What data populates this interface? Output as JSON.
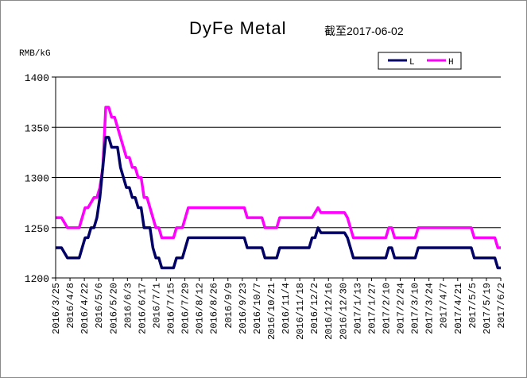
{
  "chart_data": {
    "type": "line",
    "title": "DyFe Metal",
    "subtitle": "截至2017-06-02",
    "ylabel": "RMB/kG",
    "xlabel": "",
    "ylim": [
      1200,
      1400
    ],
    "yticks": [
      1200,
      1250,
      1300,
      1350,
      1400
    ],
    "grid": "horizontal",
    "legend_position": "top-right",
    "x_tick_labels": [
      "2016/3/25",
      "2016/4/8",
      "2016/4/22",
      "2016/5/6",
      "2016/5/20",
      "2016/6/3",
      "2016/6/17",
      "2016/7/1",
      "2016/7/15",
      "2016/7/29",
      "2016/8/12",
      "2016/8/26",
      "2016/9/9",
      "2016/9/23",
      "2016/10/7",
      "2016/10/21",
      "2016/11/4",
      "2016/11/18",
      "2016/12/2",
      "2016/12/16",
      "2016/12/30",
      "2017/1/13",
      "2017/1/27",
      "2017/2/10",
      "2017/2/24",
      "2017/3/10",
      "2017/3/24",
      "2017/4/7",
      "2017/4/21",
      "2017/5/5",
      "2017/5/19",
      "2017/6/2"
    ],
    "series": [
      {
        "name": "L",
        "color": "#000066",
        "values": [
          1230,
          1230,
          1230,
          1225,
          1220,
          1220,
          1220,
          1220,
          1220,
          1230,
          1240,
          1240,
          1250,
          1250,
          1260,
          1280,
          1310,
          1340,
          1340,
          1330,
          1330,
          1330,
          1310,
          1300,
          1290,
          1290,
          1280,
          1280,
          1270,
          1270,
          1250,
          1250,
          1250,
          1230,
          1220,
          1220,
          1210,
          1210,
          1210,
          1210,
          1210,
          1220,
          1220,
          1220,
          1230,
          1240,
          1240,
          1240,
          1240,
          1240,
          1240,
          1240,
          1240,
          1240,
          1240,
          1240,
          1240,
          1240,
          1240,
          1240,
          1240,
          1240,
          1240,
          1240,
          1240,
          1230,
          1230,
          1230,
          1230,
          1230,
          1230,
          1220,
          1220,
          1220,
          1220,
          1220,
          1230,
          1230,
          1230,
          1230,
          1230,
          1230,
          1230,
          1230,
          1230,
          1230,
          1230,
          1240,
          1240,
          1250,
          1245,
          1245,
          1245,
          1245,
          1245,
          1245,
          1245,
          1245,
          1245,
          1240,
          1230,
          1220,
          1220,
          1220,
          1220,
          1220,
          1220,
          1220,
          1220,
          1220,
          1220,
          1220,
          1220,
          1230,
          1230,
          1220,
          1220,
          1220,
          1220,
          1220,
          1220,
          1220,
          1220,
          1230,
          1230,
          1230,
          1230,
          1230,
          1230,
          1230,
          1230,
          1230,
          1230,
          1230,
          1230,
          1230,
          1230,
          1230,
          1230,
          1230,
          1230,
          1230,
          1220,
          1220,
          1220,
          1220,
          1220,
          1220,
          1220,
          1220,
          1210,
          1210
        ]
      },
      {
        "name": "H",
        "color": "#ff00ff",
        "values": [
          1260,
          1260,
          1260,
          1255,
          1250,
          1250,
          1250,
          1250,
          1250,
          1260,
          1270,
          1270,
          1275,
          1280,
          1280,
          1290,
          1310,
          1370,
          1370,
          1360,
          1360,
          1350,
          1340,
          1330,
          1320,
          1320,
          1310,
          1310,
          1300,
          1300,
          1280,
          1280,
          1270,
          1260,
          1250,
          1250,
          1240,
          1240,
          1240,
          1240,
          1240,
          1250,
          1250,
          1250,
          1260,
          1270,
          1270,
          1270,
          1270,
          1270,
          1270,
          1270,
          1270,
          1270,
          1270,
          1270,
          1270,
          1270,
          1270,
          1270,
          1270,
          1270,
          1270,
          1270,
          1270,
          1260,
          1260,
          1260,
          1260,
          1260,
          1260,
          1250,
          1250,
          1250,
          1250,
          1250,
          1260,
          1260,
          1260,
          1260,
          1260,
          1260,
          1260,
          1260,
          1260,
          1260,
          1260,
          1260,
          1265,
          1270,
          1265,
          1265,
          1265,
          1265,
          1265,
          1265,
          1265,
          1265,
          1265,
          1260,
          1250,
          1240,
          1240,
          1240,
          1240,
          1240,
          1240,
          1240,
          1240,
          1240,
          1240,
          1240,
          1240,
          1250,
          1250,
          1240,
          1240,
          1240,
          1240,
          1240,
          1240,
          1240,
          1240,
          1250,
          1250,
          1250,
          1250,
          1250,
          1250,
          1250,
          1250,
          1250,
          1250,
          1250,
          1250,
          1250,
          1250,
          1250,
          1250,
          1250,
          1250,
          1250,
          1240,
          1240,
          1240,
          1240,
          1240,
          1240,
          1240,
          1240,
          1230,
          1230
        ]
      }
    ]
  }
}
